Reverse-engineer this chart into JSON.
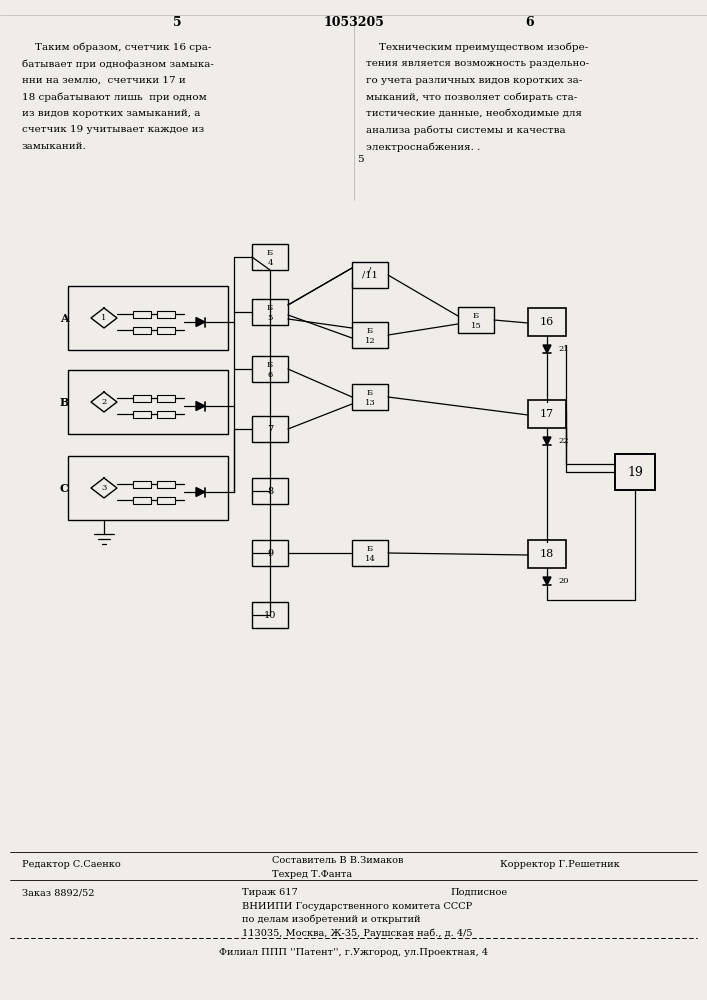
{
  "bg_color": "#f0ede8",
  "title_center": "1053205",
  "page_left": "5",
  "page_right": "6",
  "footer_editor": "Редактор С.Саенко",
  "footer_tech": "Техред Т.Фанта",
  "footer_corrector": "Корректор Г.Решетник",
  "footer_order": "Заказ 8892/52",
  "footer_tirazh": "Тираж 617",
  "footer_podpisnoe": "Подписное",
  "footer_vniip1": "ВНИИПИ Государственного комитета СССР",
  "footer_vniip2": "по делам изобретений и открытий",
  "footer_vniip3": "113035, Москва, Ж-35, Раушская наб., д. 4/5",
  "footer_filial": "Филиал ППП ''Патент'', г.Ужгород, ул.Проектная, 4",
  "footer_sostavitel": "Составитель В В.Зимаков"
}
